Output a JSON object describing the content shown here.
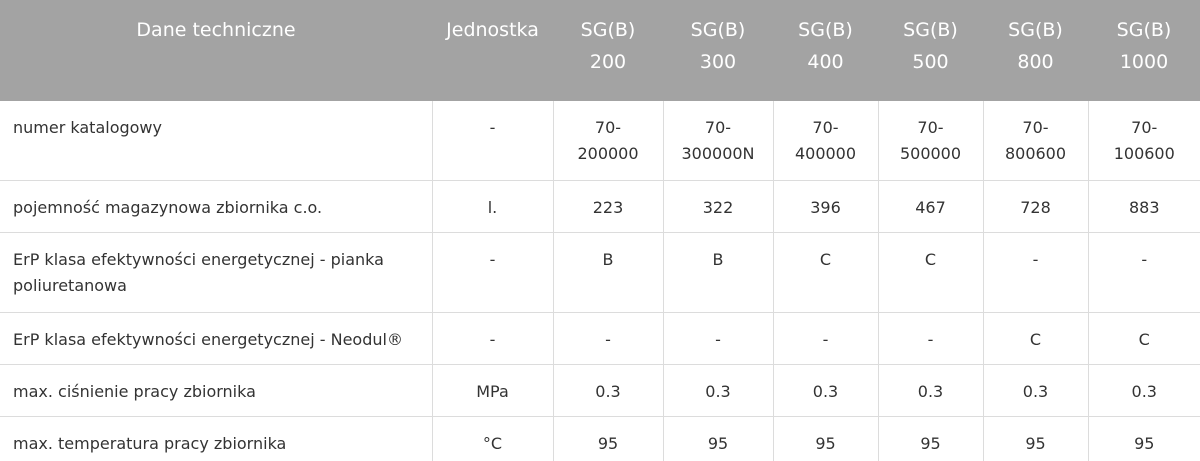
{
  "table": {
    "header": [
      "Dane techniczne",
      "Jednostka",
      "SG(B) 200",
      "SG(B) 300",
      "SG(B) 400",
      "SG(B) 500",
      "SG(B) 800",
      "SG(B) 1000"
    ],
    "rows": [
      [
        "numer katalogowy",
        "-",
        "70-200000",
        "70-300000N",
        "70-400000",
        "70-500000",
        "70-800600",
        "70-100600"
      ],
      [
        "pojemność magazynowa zbiornika c.o.",
        "l.",
        "223",
        "322",
        "396",
        "467",
        "728",
        "883"
      ],
      [
        "ErP klasa efektywności energetycznej - pianka poliuretanowa",
        "-",
        "B",
        "B",
        "C",
        "C",
        "-",
        "-"
      ],
      [
        "ErP klasa efektywności energetycznej - Neodul®",
        "-",
        "-",
        "-",
        "-",
        "-",
        "C",
        "C"
      ],
      [
        "max. ciśnienie pracy zbiornika",
        "MPa",
        "0.3",
        "0.3",
        "0.3",
        "0.3",
        "0.3",
        "0.3"
      ],
      [
        "max. temperatura pracy zbiornika",
        "°C",
        "95",
        "95",
        "95",
        "95",
        "95",
        "95"
      ]
    ]
  }
}
